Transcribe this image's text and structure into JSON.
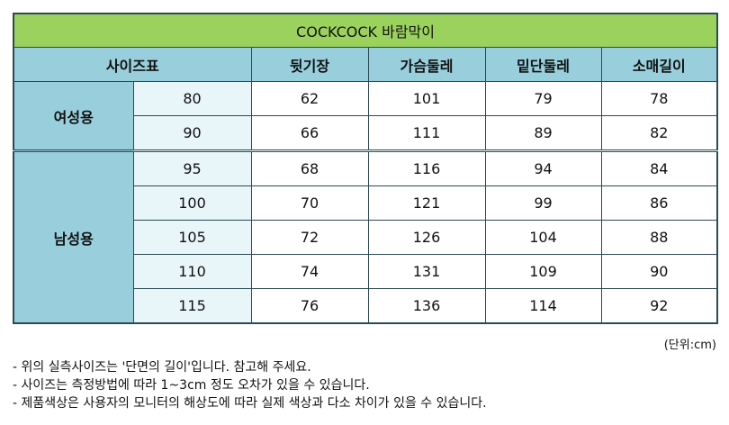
{
  "title": "COCKCOCK 바람막이",
  "headers": [
    "사이즈표",
    "뒷기장",
    "가슴둘레",
    "밑단둘레",
    "소매길이"
  ],
  "groups": [
    {
      "label": "여성용",
      "rows": [
        [
          "80",
          "62",
          "101",
          "79",
          "78"
        ],
        [
          "90",
          "66",
          "111",
          "89",
          "82"
        ]
      ]
    },
    {
      "label": "남성용",
      "rows": [
        [
          "95",
          "68",
          "116",
          "94",
          "84"
        ],
        [
          "100",
          "70",
          "121",
          "99",
          "86"
        ],
        [
          "105",
          "72",
          "126",
          "104",
          "88"
        ],
        [
          "110",
          "74",
          "131",
          "109",
          "90"
        ],
        [
          "115",
          "76",
          "136",
          "114",
          "92"
        ]
      ]
    }
  ],
  "unit": "(단위:cm)",
  "notes": [
    "- 위의 실측사이즈는 '단면의 길이'입니다. 참고해 주세요.",
    "- 사이즈는 측정방법에 따라 1~3cm 정도 오차가 있을 수 있습니다.",
    "- 제품색상은 사용자의 모니터의 해상도에 따라 실제 색상과 다소 차이가 있을 수 있습니다."
  ]
}
